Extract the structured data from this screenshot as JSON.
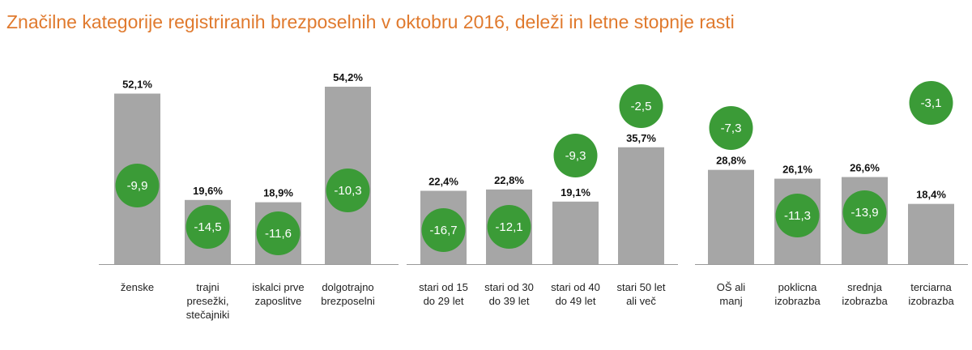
{
  "chart_data": {
    "type": "bar",
    "title": "Značilne kategorije registriranih brezposelnih v oktobru 2016, deleži in letne stopnje rasti",
    "colors": {
      "bar": "#a6a6a6",
      "circle": "#3b9b37",
      "title": "#e07a2e"
    },
    "groups": [
      {
        "categories": [
          [
            "ženske"
          ],
          [
            "trajni",
            "presežki,",
            "stečajniki"
          ],
          [
            "iskalci prve",
            "zaposlitve"
          ],
          [
            "dolgotrajno",
            "brezposelni"
          ]
        ],
        "shares": [
          52.1,
          19.6,
          18.9,
          54.2
        ],
        "share_labels": [
          "52,1%",
          "19,6%",
          "18,9%",
          "54,2%"
        ],
        "growth": [
          -9.9,
          -14.5,
          -11.6,
          -10.3
        ],
        "growth_labels": [
          "-9,9",
          "-14,5",
          "-11,6",
          "-10,3"
        ]
      },
      {
        "categories": [
          [
            "stari od 15",
            "do 29 let"
          ],
          [
            "stari od 30",
            "do 39 let"
          ],
          [
            "stari od 40",
            "do 49 let"
          ],
          [
            "stari 50 let",
            "ali več"
          ]
        ],
        "shares": [
          22.4,
          22.8,
          19.1,
          35.7
        ],
        "share_labels": [
          "22,4%",
          "22,8%",
          "19,1%",
          "35,7%"
        ],
        "growth": [
          -16.7,
          -12.1,
          -9.3,
          -2.5
        ],
        "growth_labels": [
          "-16,7",
          "-12,1",
          "-9,3",
          "-2,5"
        ]
      },
      {
        "categories": [
          [
            "OŠ ali",
            "manj"
          ],
          [
            "poklicna",
            "izobrazba"
          ],
          [
            "srednja",
            "izobrazba"
          ],
          [
            "terciarna",
            "izobrazba"
          ]
        ],
        "shares": [
          28.8,
          26.1,
          26.6,
          18.4
        ],
        "share_labels": [
          "28,8%",
          "26,1%",
          "26,6%",
          "18,4%"
        ],
        "growth": [
          -7.3,
          -11.3,
          -13.9,
          -3.1
        ],
        "growth_labels": [
          "-7,3",
          "-11,3",
          "-13,9",
          "-3,1"
        ]
      }
    ],
    "ylabel": "",
    "xlabel": "",
    "ylim": [
      0,
      55
    ]
  }
}
